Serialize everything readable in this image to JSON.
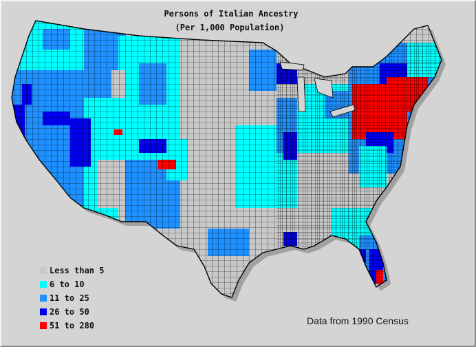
{
  "map": {
    "title": "Persons of Italian Ancestry",
    "subtitle": "(Per 1,000 Population)",
    "source_note": "Data from 1990 Census",
    "legend": [
      {
        "label": "Less than 5",
        "color": "#c8c8c8"
      },
      {
        "label": "6 to 10",
        "color": "#00ffff"
      },
      {
        "label": "11 to 25",
        "color": "#1e90ff"
      },
      {
        "label": "26 to 50",
        "color": "#0000ee"
      },
      {
        "label": "51 to 280",
        "color": "#ff0000"
      }
    ],
    "county_border_color": "#000000"
  }
}
